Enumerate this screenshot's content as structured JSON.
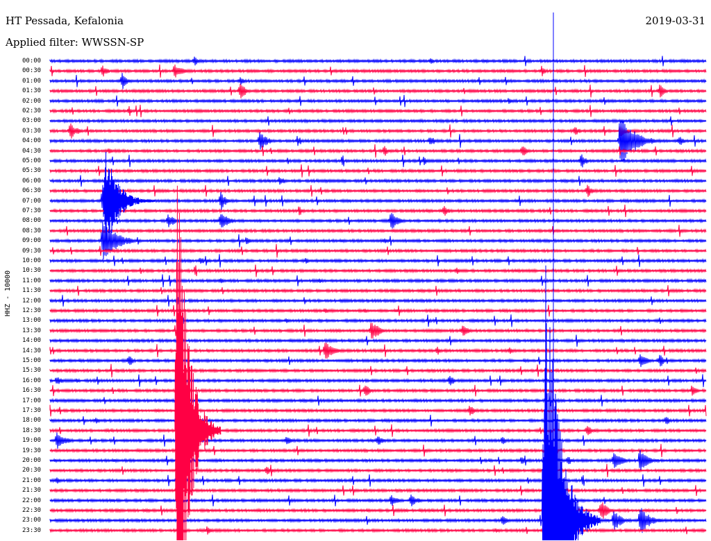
{
  "header": {
    "station": "HT Pessada, Kefalonia",
    "date": "2019-03-31",
    "filter": "Applied filter: WWSSN-SP"
  },
  "channel_label": "HHZ - 10000",
  "colors": {
    "even_rows": "#0000ff",
    "odd_rows": "#ff0044",
    "marker_line": "#0000ff",
    "background": "#ffffff"
  },
  "chart_data": {
    "type": "line",
    "subtype": "helicorder",
    "title": "HT Pessada, Kefalonia",
    "date": "2019-03-31",
    "channel": "HHZ - 10000",
    "filter": "WWSSN-SP",
    "row_interval_minutes": 30,
    "row_labels": [
      "00:00",
      "00:30",
      "01:00",
      "01:30",
      "02:00",
      "02:30",
      "03:00",
      "03:30",
      "04:00",
      "04:30",
      "05:00",
      "05:30",
      "06:00",
      "06:30",
      "07:00",
      "07:30",
      "08:00",
      "08:30",
      "09:00",
      "09:30",
      "10:00",
      "10:30",
      "11:00",
      "11:30",
      "12:00",
      "12:30",
      "13:00",
      "13:30",
      "14:00",
      "14:30",
      "15:00",
      "15:30",
      "16:00",
      "16:30",
      "17:00",
      "17:30",
      "18:00",
      "18:30",
      "19:00",
      "19:30",
      "20:00",
      "20:30",
      "21:00",
      "21:30",
      "22:00",
      "22:30",
      "23:00",
      "23:30"
    ],
    "row_colors": [
      "blue",
      "red"
    ],
    "events": [
      {
        "row": 0,
        "x": 0.22,
        "amp": 7,
        "dur": 0.02
      },
      {
        "row": 0,
        "x": 0.58,
        "amp": 6,
        "dur": 0.015
      },
      {
        "row": 1,
        "x": 0.08,
        "amp": 9,
        "dur": 0.02
      },
      {
        "row": 1,
        "x": 0.19,
        "amp": 12,
        "dur": 0.03
      },
      {
        "row": 1,
        "x": 0.75,
        "amp": 8,
        "dur": 0.015
      },
      {
        "row": 2,
        "x": 0.11,
        "amp": 12,
        "dur": 0.02
      },
      {
        "row": 2,
        "x": 0.29,
        "amp": 7,
        "dur": 0.015
      },
      {
        "row": 3,
        "x": 0.29,
        "amp": 13,
        "dur": 0.025
      },
      {
        "row": 3,
        "x": 0.93,
        "amp": 11,
        "dur": 0.02
      },
      {
        "row": 4,
        "x": 0.7,
        "amp": 6,
        "dur": 0.02
      },
      {
        "row": 5,
        "x": 0.12,
        "amp": 5,
        "dur": 0.015
      },
      {
        "row": 7,
        "x": 0.03,
        "amp": 13,
        "dur": 0.03
      },
      {
        "row": 7,
        "x": 0.8,
        "amp": 8,
        "dur": 0.02
      },
      {
        "row": 7,
        "x": 0.87,
        "amp": 11,
        "dur": 0.02
      },
      {
        "row": 8,
        "x": 0.32,
        "amp": 15,
        "dur": 0.03
      },
      {
        "row": 8,
        "x": 0.38,
        "amp": 6,
        "dur": 0.015
      },
      {
        "row": 8,
        "x": 0.58,
        "amp": 9,
        "dur": 0.02
      },
      {
        "row": 8,
        "x": 0.87,
        "amp": 40,
        "dur": 0.06
      },
      {
        "row": 8,
        "x": 0.96,
        "amp": 8,
        "dur": 0.02
      },
      {
        "row": 9,
        "x": 0.09,
        "amp": 6,
        "dur": 0.015
      },
      {
        "row": 9,
        "x": 0.51,
        "amp": 8,
        "dur": 0.015
      },
      {
        "row": 9,
        "x": 0.72,
        "amp": 11,
        "dur": 0.02
      },
      {
        "row": 10,
        "x": 0.57,
        "amp": 7,
        "dur": 0.015
      },
      {
        "row": 10,
        "x": 0.81,
        "amp": 12,
        "dur": 0.02
      },
      {
        "row": 12,
        "x": 0.35,
        "amp": 8,
        "dur": 0.02
      },
      {
        "row": 13,
        "x": 0.82,
        "amp": 12,
        "dur": 0.015
      },
      {
        "row": 14,
        "x": 0.08,
        "amp": 26,
        "dur": 0.05
      },
      {
        "row": 14,
        "x": 0.26,
        "amp": 14,
        "dur": 0.025
      },
      {
        "row": 15,
        "x": 0.38,
        "amp": 8,
        "dur": 0.015
      },
      {
        "row": 15,
        "x": 0.6,
        "amp": 9,
        "dur": 0.02
      },
      {
        "row": 16,
        "x": 0.18,
        "amp": 12,
        "dur": 0.025
      },
      {
        "row": 16,
        "x": 0.26,
        "amp": 16,
        "dur": 0.03
      },
      {
        "row": 16,
        "x": 0.52,
        "amp": 14,
        "dur": 0.03
      },
      {
        "row": 18,
        "x": 0.08,
        "amp": 30,
        "dur": 0.06
      },
      {
        "row": 18,
        "x": 0.3,
        "amp": 8,
        "dur": 0.015
      },
      {
        "row": 18,
        "x": 0.51,
        "amp": 6,
        "dur": 0.015
      },
      {
        "row": 20,
        "x": 0.23,
        "amp": 6,
        "dur": 0.015
      },
      {
        "row": 20,
        "x": 0.39,
        "amp": 5,
        "dur": 0.015
      },
      {
        "row": 21,
        "x": 0.62,
        "amp": 6,
        "dur": 0.015
      },
      {
        "row": 22,
        "x": 0.26,
        "amp": 5,
        "dur": 0.015
      },
      {
        "row": 22,
        "x": 0.41,
        "amp": 5,
        "dur": 0.015
      },
      {
        "row": 25,
        "x": 0.42,
        "amp": 5,
        "dur": 0.015
      },
      {
        "row": 25,
        "x": 0.48,
        "amp": 5,
        "dur": 0.015
      },
      {
        "row": 26,
        "x": 0.36,
        "amp": 4,
        "dur": 0.015
      },
      {
        "row": 27,
        "x": 0.49,
        "amp": 18,
        "dur": 0.03
      },
      {
        "row": 27,
        "x": 0.63,
        "amp": 12,
        "dur": 0.02
      },
      {
        "row": 29,
        "x": 0.42,
        "amp": 18,
        "dur": 0.03
      },
      {
        "row": 29,
        "x": 0.59,
        "amp": 8,
        "dur": 0.015
      },
      {
        "row": 29,
        "x": 0.7,
        "amp": 6,
        "dur": 0.015
      },
      {
        "row": 30,
        "x": 0.12,
        "amp": 10,
        "dur": 0.015
      },
      {
        "row": 30,
        "x": 0.9,
        "amp": 14,
        "dur": 0.025
      },
      {
        "row": 30,
        "x": 0.93,
        "amp": 12,
        "dur": 0.02
      },
      {
        "row": 32,
        "x": 0.01,
        "amp": 8,
        "dur": 0.025
      },
      {
        "row": 32,
        "x": 0.04,
        "amp": 5,
        "dur": 0.015
      },
      {
        "row": 32,
        "x": 0.61,
        "amp": 10,
        "dur": 0.015
      },
      {
        "row": 33,
        "x": 0.48,
        "amp": 12,
        "dur": 0.02
      },
      {
        "row": 33,
        "x": 0.98,
        "amp": 11,
        "dur": 0.015
      },
      {
        "row": 35,
        "x": 0.64,
        "amp": 10,
        "dur": 0.02
      },
      {
        "row": 36,
        "x": 0.07,
        "amp": 6,
        "dur": 0.015
      },
      {
        "row": 36,
        "x": 0.94,
        "amp": 7,
        "dur": 0.015
      },
      {
        "row": 37,
        "x": 0.82,
        "amp": 10,
        "dur": 0.02
      },
      {
        "row": 38,
        "x": 0.01,
        "amp": 14,
        "dur": 0.035
      },
      {
        "row": 38,
        "x": 0.2,
        "amp": 9,
        "dur": 0.02
      },
      {
        "row": 38,
        "x": 0.36,
        "amp": 7,
        "dur": 0.025
      },
      {
        "row": 38,
        "x": 0.5,
        "amp": 8,
        "dur": 0.02
      },
      {
        "row": 38,
        "x": 0.69,
        "amp": 7,
        "dur": 0.015
      },
      {
        "row": 40,
        "x": 0.2,
        "amp": 7,
        "dur": 0.02
      },
      {
        "row": 40,
        "x": 0.72,
        "amp": 8,
        "dur": 0.015
      },
      {
        "row": 40,
        "x": 0.79,
        "amp": 7,
        "dur": 0.02
      },
      {
        "row": 40,
        "x": 0.86,
        "amp": 16,
        "dur": 0.03
      },
      {
        "row": 40,
        "x": 0.9,
        "amp": 20,
        "dur": 0.03
      },
      {
        "row": 41,
        "x": 0.33,
        "amp": 6,
        "dur": 0.03
      },
      {
        "row": 42,
        "x": 0.01,
        "amp": 6,
        "dur": 0.015
      },
      {
        "row": 44,
        "x": 0.52,
        "amp": 9,
        "dur": 0.03
      },
      {
        "row": 44,
        "x": 0.55,
        "amp": 10,
        "dur": 0.03
      },
      {
        "row": 45,
        "x": 0.84,
        "amp": 18,
        "dur": 0.025
      },
      {
        "row": 46,
        "x": 0.69,
        "amp": 12,
        "dur": 0.015
      },
      {
        "row": 46,
        "x": 0.86,
        "amp": 18,
        "dur": 0.03
      },
      {
        "row": 46,
        "x": 0.9,
        "amp": 22,
        "dur": 0.04
      },
      {
        "row": 47,
        "x": 0.24,
        "amp": 7,
        "dur": 0.015
      },
      {
        "row": 47,
        "x": 0.68,
        "amp": 5,
        "dur": 0.015
      }
    ],
    "major_events": [
      {
        "row": 14,
        "x": 0.08,
        "amp": 80,
        "dur": 0.08
      },
      {
        "row": 37,
        "x": 0.19,
        "amp": 420,
        "dur": 0.07
      },
      {
        "row": 46,
        "x": 0.75,
        "amp": 420,
        "dur": 0.09
      }
    ],
    "marker_x": 0.768
  }
}
